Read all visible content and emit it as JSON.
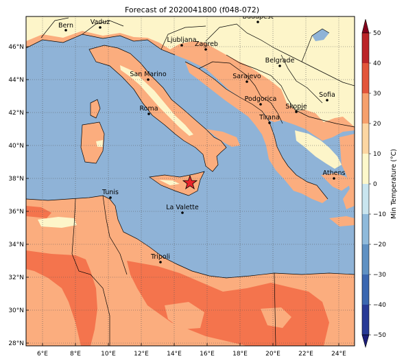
{
  "title": "Forecast of 2020041800 (f048-072)",
  "colorbar": {
    "label": "Min Temperature (°C)",
    "ticks": [
      "−50",
      "−40",
      "−30",
      "−20",
      "−10",
      "0",
      "10",
      "20",
      "30",
      "40",
      "50"
    ],
    "colors": [
      "#1c1e7a",
      "#283a96",
      "#3b67b0",
      "#5f91c3",
      "#8fbadb",
      "#c9e5ef",
      "#fdf8cb",
      "#fcd6a2",
      "#f6a06c",
      "#e2553a",
      "#bb2428",
      "#84001c"
    ]
  },
  "x_ticks": [
    "6°E",
    "8°E",
    "10°E",
    "12°E",
    "14°E",
    "16°E",
    "18°E",
    "20°E",
    "22°E",
    "24°E"
  ],
  "y_ticks": [
    "46°N",
    "44°N",
    "42°N",
    "40°N",
    "38°N",
    "36°N",
    "34°N",
    "32°N",
    "30°N",
    "28°N"
  ],
  "cities": [
    "Bern",
    "Vaduz",
    "Budapest",
    "Ljubljana",
    "Zagreb",
    "Belgrade",
    "San Marino",
    "Sarajevo",
    "Sofia",
    "Podgorica",
    "Skopje",
    "Roma",
    "Tirana",
    "Athens",
    "Tunis",
    "La Valette",
    "Tripoli"
  ],
  "colors": {
    "sea": "#8fb3d7",
    "warm": "#fbad7e",
    "hot": "#f4744d",
    "mild": "#fdf5c9"
  },
  "marker": "star"
}
